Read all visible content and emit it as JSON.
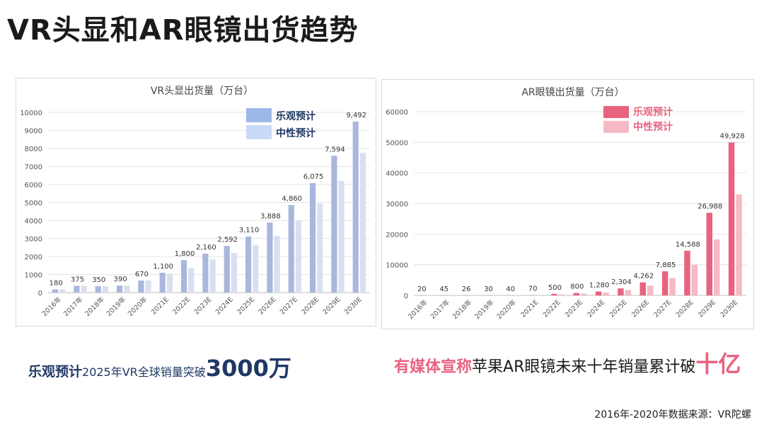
{
  "page": {
    "title": "VR头显和AR眼镜出货趋势",
    "source_note": "2016年-2020年数据来源：VR陀螺"
  },
  "captions": {
    "vr": {
      "highlight": "乐观预计",
      "text": "2025年VR全球销量突破",
      "emphasis": "3000万"
    },
    "ar": {
      "highlight": "有媒体宣称",
      "text": "苹果AR眼镜未来十年销量累计破",
      "emphasis": "十亿"
    }
  },
  "chart_data": [
    {
      "id": "vr",
      "type": "bar",
      "title": "VR头显出货量（万台）",
      "categories": [
        "2016年",
        "2017年",
        "2018年",
        "2019年",
        "2020年",
        "2021E",
        "2022E",
        "2023E",
        "2024E",
        "2025E",
        "2026E",
        "2027E",
        "2028E",
        "2029E",
        "2030E"
      ],
      "series": [
        {
          "name": "乐观预计",
          "color": "#aab7dc",
          "values": [
            180,
            375,
            350,
            390,
            670,
            1100,
            1800,
            2160,
            2592,
            3110,
            3888,
            4860,
            6075,
            7594,
            9492
          ],
          "labels": [
            "180",
            "375",
            "350",
            "390",
            "670",
            "1,100",
            "1,800",
            "2,160",
            "2,592",
            "3,110",
            "3,888",
            "4,860",
            "6,075",
            "7,594",
            "9,492"
          ]
        },
        {
          "name": "中性预计",
          "color": "#dadff0",
          "values": [
            180,
            375,
            350,
            390,
            670,
            1050,
            1350,
            1850,
            2200,
            2650,
            3150,
            4000,
            4950,
            6200,
            7750
          ]
        }
      ],
      "legend_colors": [
        "#9db7e8",
        "#c9daf6"
      ],
      "legend_text_color": "#1f3864",
      "ylim": [
        0,
        10000
      ],
      "yticks": [
        0,
        1000,
        2000,
        3000,
        4000,
        5000,
        6000,
        7000,
        8000,
        9000,
        10000
      ],
      "grid": true,
      "legend_position": "top-right"
    },
    {
      "id": "ar",
      "type": "bar",
      "title": "AR眼镜出货量（万台）",
      "categories": [
        "2016年",
        "2017年",
        "2018年",
        "2019年",
        "2020年",
        "2021E",
        "2022E",
        "2023E",
        "2024E",
        "2025E",
        "2026E",
        "2027E",
        "2028E",
        "2029E",
        "2030E"
      ],
      "series": [
        {
          "name": "乐观预计",
          "color": "#e8637f",
          "values": [
            20,
            45,
            26,
            30,
            40,
            70,
            500,
            800,
            1280,
            2304,
            4262,
            7885,
            14588,
            26988,
            49928
          ],
          "labels": [
            "20",
            "45",
            "26",
            "30",
            "40",
            "70",
            "500",
            "800",
            "1,280",
            "2,304",
            "4,262",
            "7,885",
            "14,588",
            "26,988",
            "49,928"
          ]
        },
        {
          "name": "中性预计",
          "color": "#f6bac5",
          "values": [
            20,
            45,
            26,
            30,
            40,
            60,
            350,
            600,
            950,
            1750,
            3200,
            5700,
            10000,
            18300,
            33000
          ]
        }
      ],
      "legend_colors": [
        "#e8637f",
        "#f6bac5"
      ],
      "legend_text_color": "#e8637f",
      "ylim": [
        0,
        60000
      ],
      "yticks": [
        0,
        10000,
        20000,
        30000,
        40000,
        50000,
        60000
      ],
      "grid": true,
      "legend_position": "top-right"
    }
  ]
}
